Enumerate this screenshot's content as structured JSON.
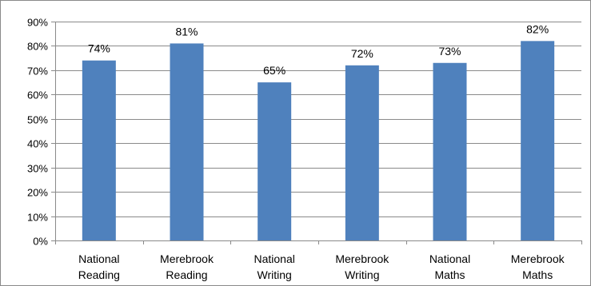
{
  "chart_data": {
    "type": "bar",
    "title": "",
    "xlabel": "",
    "ylabel": "",
    "categories": [
      [
        "National",
        "Reading"
      ],
      [
        "Merebrook",
        "Reading"
      ],
      [
        "National",
        "Writing"
      ],
      [
        "Merebrook",
        "Writing"
      ],
      [
        "National",
        "Maths"
      ],
      [
        "Merebrook",
        "Maths"
      ]
    ],
    "values": [
      74,
      81,
      65,
      72,
      73,
      82
    ],
    "data_labels": [
      "74%",
      "81%",
      "65%",
      "72%",
      "73%",
      "82%"
    ],
    "ylim": [
      0,
      90
    ],
    "yticks": [
      0,
      10,
      20,
      30,
      40,
      50,
      60,
      70,
      80,
      90
    ],
    "ytick_labels": [
      "0%",
      "10%",
      "20%",
      "30%",
      "40%",
      "50%",
      "60%",
      "70%",
      "80%",
      "90%"
    ],
    "grid": true,
    "legend": "none",
    "colors": {
      "bar": "#4f81bd",
      "grid": "#8a8a8a",
      "axis": "#8a8a8a"
    }
  }
}
